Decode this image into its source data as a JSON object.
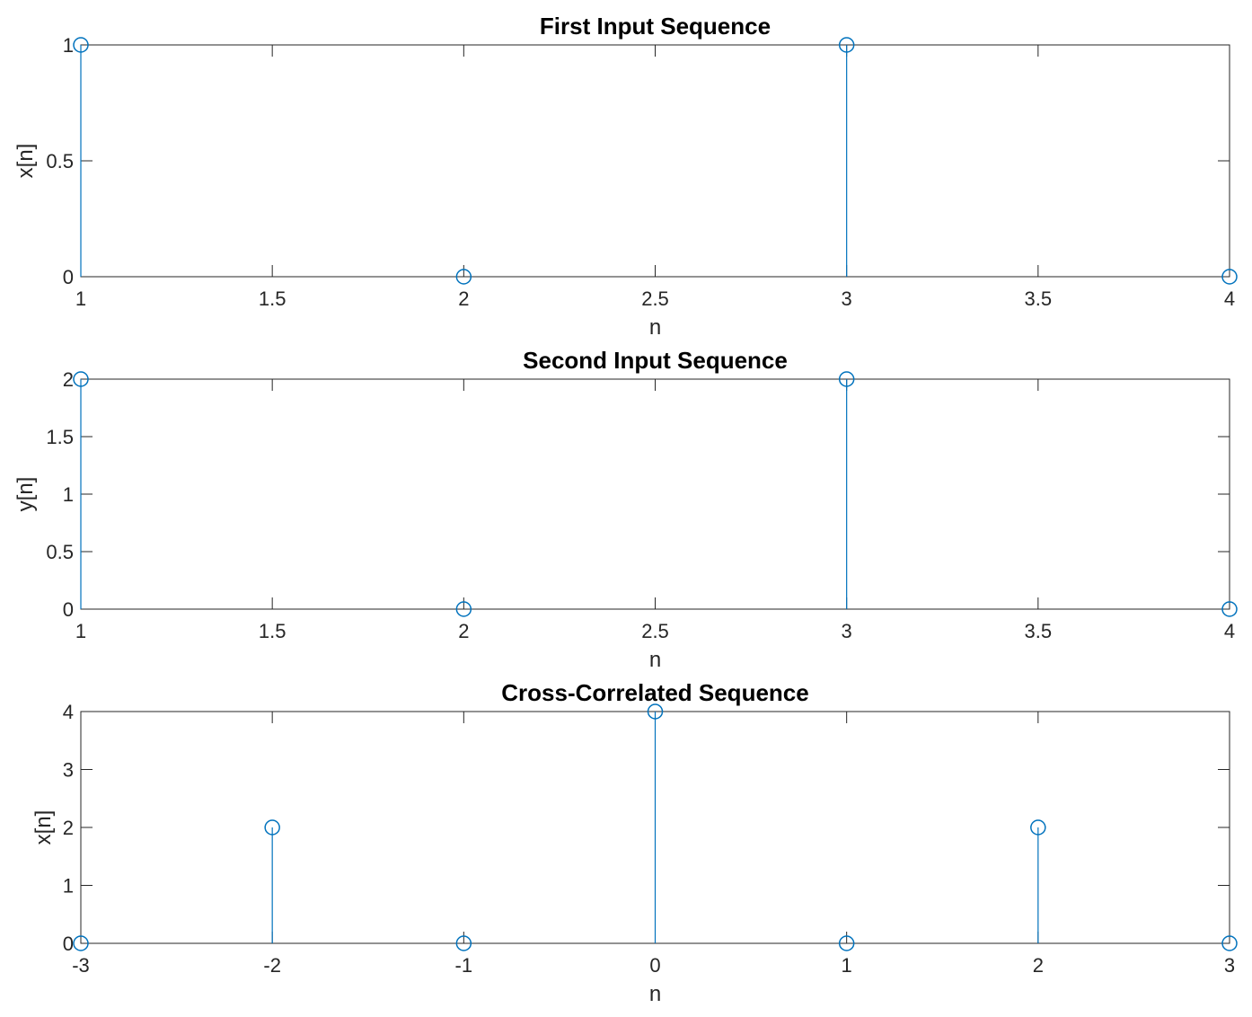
{
  "chart_data": [
    {
      "type": "stem",
      "title": "First Input Sequence",
      "xlabel": "n",
      "ylabel": "x[n]",
      "x": [
        1,
        2,
        3,
        4
      ],
      "values": [
        1,
        0,
        1,
        0
      ],
      "xlim": [
        1,
        4
      ],
      "ylim": [
        0,
        1
      ],
      "xticks": [
        1,
        1.5,
        2,
        2.5,
        3,
        3.5,
        4
      ],
      "xtick_labels": [
        "1",
        "1.5",
        "2",
        "2.5",
        "3",
        "3.5",
        "4"
      ],
      "yticks": [
        0,
        0.5,
        1
      ],
      "ytick_labels": [
        "0",
        "0.5",
        "1"
      ],
      "color": "#0072BD",
      "grid": false
    },
    {
      "type": "stem",
      "title": "Second Input Sequence",
      "xlabel": "n",
      "ylabel": "y[n]",
      "x": [
        1,
        2,
        3,
        4
      ],
      "values": [
        2,
        0,
        2,
        0
      ],
      "xlim": [
        1,
        4
      ],
      "ylim": [
        0,
        2
      ],
      "xticks": [
        1,
        1.5,
        2,
        2.5,
        3,
        3.5,
        4
      ],
      "xtick_labels": [
        "1",
        "1.5",
        "2",
        "2.5",
        "3",
        "3.5",
        "4"
      ],
      "yticks": [
        0,
        0.5,
        1,
        1.5,
        2
      ],
      "ytick_labels": [
        "0",
        "0.5",
        "1",
        "1.5",
        "2"
      ],
      "color": "#0072BD",
      "grid": false
    },
    {
      "type": "stem",
      "title": "Cross-Correlated Sequence",
      "xlabel": "n",
      "ylabel": "x[n]",
      "x": [
        -3,
        -2,
        -1,
        0,
        1,
        2,
        3
      ],
      "values": [
        0,
        2,
        0,
        4,
        0,
        2,
        0
      ],
      "xlim": [
        -3,
        3
      ],
      "ylim": [
        0,
        4
      ],
      "xticks": [
        -3,
        -2,
        -1,
        0,
        1,
        2,
        3
      ],
      "xtick_labels": [
        "-3",
        "-2",
        "-1",
        "0",
        "1",
        "2",
        "3"
      ],
      "yticks": [
        0,
        1,
        2,
        3,
        4
      ],
      "ytick_labels": [
        "0",
        "1",
        "2",
        "3",
        "4"
      ],
      "color": "#0072BD",
      "grid": false
    }
  ]
}
